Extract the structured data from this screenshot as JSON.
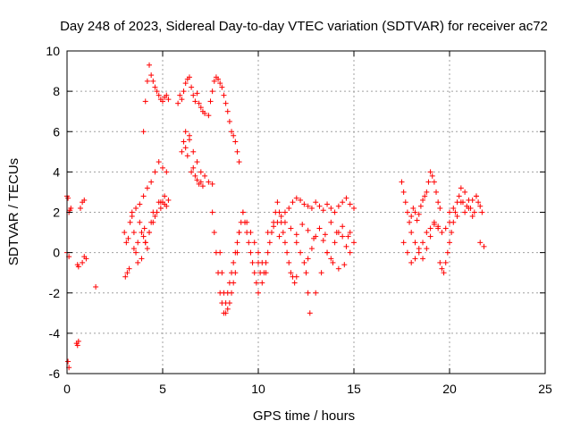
{
  "chart_data": {
    "type": "scatter",
    "title": "Day 248 of 2023, Sidereal Day-to-day VTEC variation (SDTVAR) for receiver ac72",
    "xlabel": "GPS time / hours",
    "ylabel": "SDTVAR / TECUs",
    "xlim": [
      0,
      25
    ],
    "ylim": [
      -6,
      10
    ],
    "xticks": [
      "0",
      "5",
      "10",
      "15",
      "20",
      "25"
    ],
    "yticks": [
      "-6",
      "-4",
      "-2",
      "0",
      "2",
      "4",
      "6",
      "8",
      "10"
    ],
    "grid": true,
    "marker": "+",
    "series": [
      {
        "name": "SDTVAR",
        "color": "#ff0000",
        "x": [
          0.0,
          0.05,
          0.1,
          0.15,
          0.2,
          0.0,
          0.1,
          0.05,
          0.1,
          0.6,
          0.7,
          0.8,
          0.9,
          1.0,
          0.5,
          0.6,
          0.8,
          0.9,
          1.5,
          0.55,
          0.55,
          3.0,
          3.05,
          3.1,
          3.15,
          3.2,
          3.25,
          3.3,
          3.4,
          3.5,
          3.6,
          3.7,
          3.8,
          3.9,
          4.0,
          4.05,
          4.1,
          4.2,
          4.3,
          4.4,
          4.5,
          4.6,
          4.7,
          4.8,
          4.9,
          5.0,
          5.1,
          5.2,
          5.3,
          3.5,
          3.7,
          3.9,
          4.1,
          4.3,
          4.5,
          4.7,
          4.9,
          5.1,
          3.4,
          3.6,
          3.8,
          4.0,
          4.2,
          4.4,
          4.6,
          4.8,
          5.0,
          5.2,
          4.0,
          4.1,
          4.2,
          4.3,
          4.4,
          4.5,
          4.6,
          4.7,
          4.8,
          4.9,
          5.0,
          5.1,
          5.2,
          5.3,
          5.8,
          5.9,
          6.0,
          6.1,
          6.2,
          6.3,
          6.4,
          6.5,
          6.6,
          6.7,
          6.8,
          6.9,
          7.0,
          7.1,
          7.2,
          6.0,
          6.1,
          6.2,
          6.3,
          6.4,
          6.5,
          6.6,
          6.7,
          6.8,
          6.9,
          7.0,
          7.1,
          6.2,
          6.4,
          6.6,
          6.8,
          7.0,
          7.2,
          7.4,
          7.6,
          7.4,
          7.5,
          7.6,
          7.7,
          7.8,
          7.9,
          8.0,
          8.1,
          8.2,
          8.3,
          8.4,
          8.5,
          8.6,
          8.7,
          8.8,
          8.9,
          9.0,
          7.6,
          7.7,
          7.8,
          7.9,
          8.0,
          8.1,
          8.2,
          8.3,
          8.4,
          8.5,
          8.6,
          8.7,
          8.8,
          8.9,
          9.0,
          9.1,
          9.2,
          9.3,
          9.4,
          9.5,
          9.6,
          9.7,
          9.8,
          9.9,
          10.0,
          8.0,
          8.1,
          8.2,
          8.3,
          8.4,
          8.5,
          8.6,
          8.7,
          8.8,
          8.9,
          9.0,
          9.2,
          9.4,
          9.6,
          9.8,
          10.0,
          10.2,
          10.4,
          10.0,
          10.1,
          10.2,
          10.3,
          10.4,
          10.5,
          10.6,
          10.7,
          10.8,
          10.9,
          11.0,
          11.1,
          11.2,
          11.3,
          11.4,
          11.5,
          11.6,
          11.7,
          11.8,
          11.9,
          12.0,
          11.0,
          11.2,
          11.4,
          11.6,
          11.8,
          12.0,
          12.2,
          12.4,
          12.6,
          12.8,
          13.0,
          13.2,
          13.4,
          13.6,
          13.8,
          14.0,
          14.2,
          14.4,
          14.6,
          14.8,
          15.0,
          12.0,
          12.2,
          12.4,
          12.6,
          12.8,
          13.0,
          13.2,
          13.4,
          13.6,
          13.8,
          14.0,
          14.2,
          14.4,
          14.6,
          14.8,
          15.0,
          12.5,
          12.6,
          12.7,
          13.0,
          13.3,
          13.6,
          13.9,
          14.2,
          14.5,
          14.8,
          10.5,
          10.8,
          11.1,
          11.4,
          11.7,
          12.0,
          12.3,
          12.6,
          12.9,
          13.2,
          13.5,
          13.8,
          14.1,
          14.4,
          14.7,
          17.5,
          17.6,
          17.7,
          17.8,
          17.9,
          18.0,
          18.1,
          18.2,
          18.3,
          18.4,
          18.5,
          18.6,
          18.7,
          18.8,
          18.9,
          19.0,
          19.1,
          19.2,
          19.3,
          19.4,
          19.5,
          17.6,
          17.8,
          18.0,
          18.2,
          18.4,
          18.6,
          18.8,
          19.0,
          19.2,
          19.4,
          19.6,
          19.8,
          20.0,
          19.5,
          19.6,
          19.7,
          19.8,
          19.9,
          20.0,
          20.1,
          20.2,
          20.3,
          20.4,
          20.5,
          20.6,
          20.7,
          20.8,
          20.9,
          21.0,
          21.1,
          21.2,
          21.3,
          21.4,
          21.5,
          21.6,
          21.7,
          20.0,
          20.2,
          20.4,
          20.6,
          20.8,
          21.0,
          21.2,
          21.4,
          21.6,
          21.8,
          18.0,
          18.2,
          18.4,
          18.6,
          18.8,
          19.0,
          19.2,
          19.4
        ],
        "y": [
          2.8,
          2.7,
          2.0,
          2.1,
          2.2,
          0.0,
          -0.2,
          -5.4,
          -5.7,
          -0.7,
          2.2,
          2.5,
          2.6,
          -0.3,
          -4.5,
          -4.4,
          -0.5,
          -0.2,
          -1.7,
          -0.6,
          -4.6,
          1.0,
          -1.2,
          0.5,
          -1.0,
          0.7,
          -0.8,
          1.5,
          2.0,
          1.0,
          0.0,
          0.5,
          1.5,
          1.0,
          0.8,
          1.2,
          0.5,
          0.2,
          1.0,
          1.5,
          2.0,
          1.8,
          2.0,
          2.5,
          2.2,
          2.5,
          2.8,
          2.3,
          2.6,
          0.2,
          -0.5,
          -0.3,
          0.5,
          1.0,
          1.5,
          2.0,
          2.5,
          2.4,
          1.8,
          2.2,
          2.4,
          2.8,
          3.2,
          3.5,
          4.0,
          4.5,
          4.2,
          4.0,
          6.0,
          7.5,
          8.5,
          9.3,
          8.8,
          8.5,
          8.2,
          8.0,
          7.8,
          7.6,
          7.5,
          7.7,
          7.8,
          7.6,
          7.4,
          7.8,
          7.6,
          8.0,
          8.4,
          8.6,
          8.7,
          8.2,
          7.8,
          7.5,
          7.9,
          7.4,
          7.2,
          7.0,
          6.9,
          5.0,
          5.5,
          5.2,
          4.8,
          5.6,
          4.0,
          4.2,
          3.8,
          3.6,
          3.4,
          3.5,
          3.3,
          6.0,
          5.8,
          5.0,
          4.5,
          4.0,
          3.8,
          3.5,
          3.4,
          6.8,
          7.5,
          8.0,
          8.5,
          8.7,
          8.6,
          8.4,
          8.2,
          7.8,
          7.4,
          7.0,
          6.5,
          6.0,
          5.8,
          5.5,
          5.0,
          4.5,
          2.0,
          1.0,
          0.0,
          -1.0,
          -2.0,
          -2.5,
          -3.0,
          -2.5,
          -2.0,
          -1.5,
          -1.0,
          -0.5,
          0.0,
          0.5,
          1.0,
          1.5,
          2.0,
          1.5,
          1.0,
          0.5,
          0.0,
          -0.5,
          -1.0,
          -1.5,
          -2.0,
          0.0,
          -1.0,
          -2.0,
          -3.0,
          -2.8,
          -2.5,
          -2.0,
          -1.5,
          -1.0,
          0.0,
          1.0,
          2.0,
          1.5,
          1.0,
          0.5,
          0.0,
          -0.5,
          -1.0,
          -0.5,
          -1.0,
          -1.5,
          -1.0,
          -0.5,
          0.0,
          0.5,
          1.0,
          1.5,
          2.0,
          2.5,
          2.0,
          1.5,
          1.0,
          0.5,
          0.0,
          -0.5,
          -1.0,
          -1.2,
          -1.5,
          -1.2,
          1.5,
          1.8,
          2.0,
          2.2,
          2.5,
          2.7,
          2.6,
          2.4,
          2.3,
          2.2,
          2.5,
          2.3,
          2.1,
          2.4,
          2.2,
          2.0,
          2.3,
          2.5,
          2.7,
          2.4,
          2.2,
          0.5,
          0.0,
          -0.5,
          -0.3,
          0.2,
          0.8,
          1.2,
          0.6,
          0.0,
          -0.3,
          0.5,
          1.0,
          0.8,
          0.3,
          1.0,
          0.5,
          -1.0,
          -2.0,
          -3.0,
          -2.0,
          -1.0,
          0.0,
          -0.5,
          -0.8,
          -0.6,
          0.0,
          1.0,
          1.3,
          0.8,
          1.5,
          1.2,
          0.9,
          1.4,
          1.1,
          0.7,
          1.2,
          0.9,
          1.5,
          1.0,
          1.3,
          0.8,
          3.5,
          3.0,
          2.5,
          2.0,
          1.5,
          1.8,
          2.2,
          2.0,
          1.6,
          1.9,
          2.3,
          2.6,
          2.8,
          3.0,
          3.5,
          4.0,
          3.8,
          3.5,
          3.0,
          2.5,
          2.2,
          0.5,
          0.0,
          -0.5,
          -0.3,
          0.2,
          0.5,
          1.0,
          1.2,
          1.4,
          1.3,
          1.0,
          1.2,
          1.5,
          -0.5,
          -0.8,
          -1.0,
          -0.5,
          0.0,
          0.5,
          1.0,
          1.5,
          2.0,
          2.5,
          2.8,
          3.2,
          2.5,
          2.0,
          2.3,
          2.6,
          2.2,
          1.8,
          2.0,
          2.8,
          2.5,
          2.3,
          2.0,
          2.0,
          2.2,
          1.8,
          2.5,
          3.0,
          2.2,
          2.6,
          2.8,
          0.5,
          0.3,
          1.0,
          0.5,
          0.0,
          -0.3,
          0.2,
          0.8,
          1.5,
          1.2
        ]
      }
    ]
  }
}
